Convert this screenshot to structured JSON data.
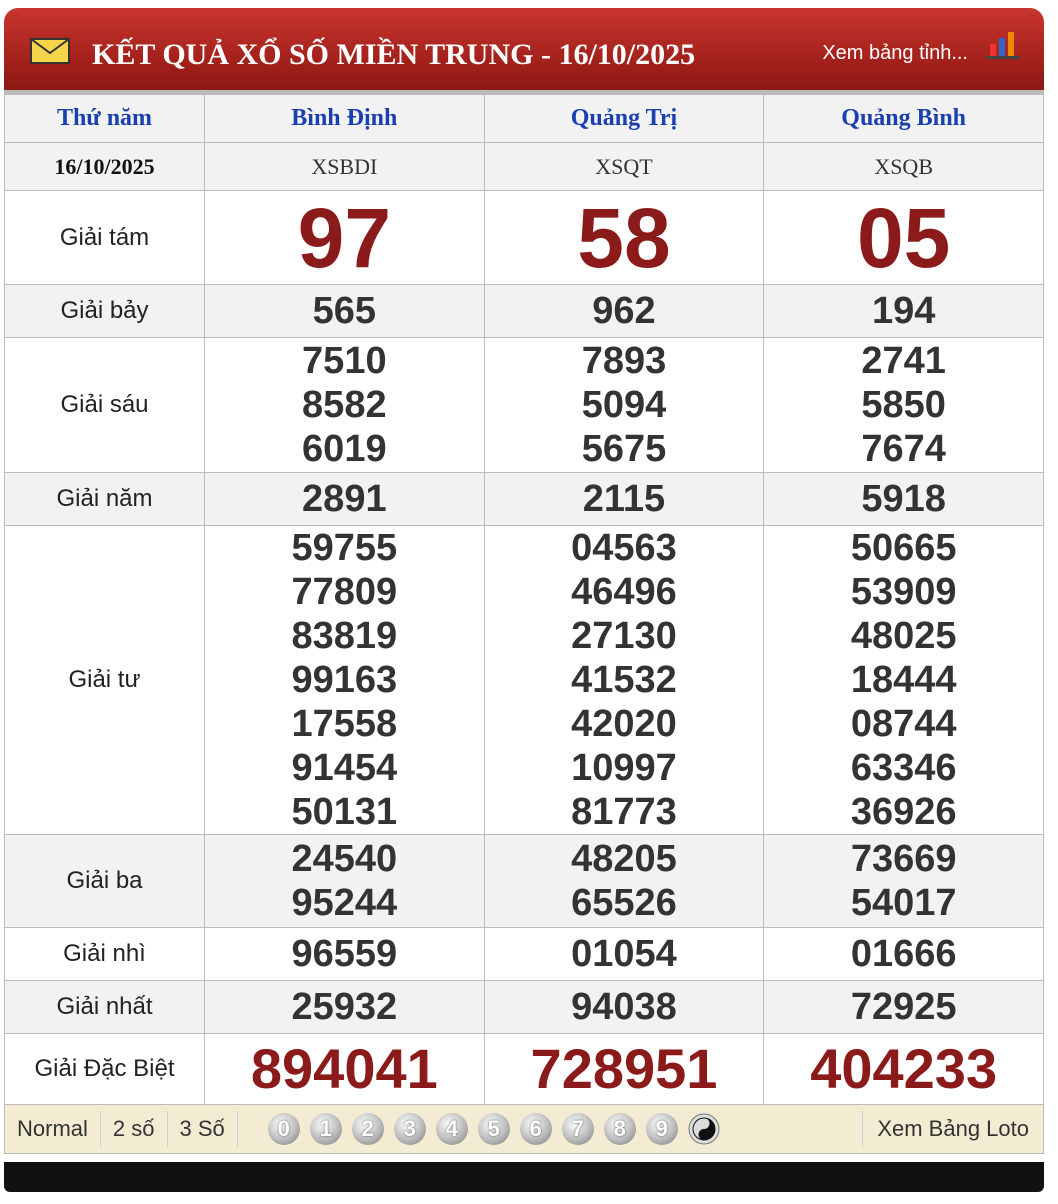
{
  "header": {
    "title": "KẾT QUẢ XỔ SỐ MIỀN TRUNG - 16/10/2025",
    "link": "Xem bảng tỉnh..."
  },
  "table": {
    "day": "Thứ năm",
    "date": "16/10/2025",
    "provinces": [
      {
        "name": "Bình Định",
        "code": "XSBDI"
      },
      {
        "name": "Quảng Trị",
        "code": "XSQT"
      },
      {
        "name": "Quảng Bình",
        "code": "XSQB"
      }
    ],
    "prizes": [
      {
        "label": "Giải tám",
        "results": [
          [
            "97"
          ],
          [
            "58"
          ],
          [
            "05"
          ]
        ]
      },
      {
        "label": "Giải bảy",
        "results": [
          [
            "565"
          ],
          [
            "962"
          ],
          [
            "194"
          ]
        ]
      },
      {
        "label": "Giải sáu",
        "results": [
          [
            "7510",
            "8582",
            "6019"
          ],
          [
            "7893",
            "5094",
            "5675"
          ],
          [
            "2741",
            "5850",
            "7674"
          ]
        ]
      },
      {
        "label": "Giải năm",
        "results": [
          [
            "2891"
          ],
          [
            "2115"
          ],
          [
            "5918"
          ]
        ]
      },
      {
        "label": "Giải tư",
        "results": [
          [
            "59755",
            "77809",
            "83819",
            "99163",
            "17558",
            "91454",
            "50131"
          ],
          [
            "04563",
            "46496",
            "27130",
            "41532",
            "42020",
            "10997",
            "81773"
          ],
          [
            "50665",
            "53909",
            "48025",
            "18444",
            "08744",
            "63346",
            "36926"
          ]
        ]
      },
      {
        "label": "Giải ba",
        "results": [
          [
            "24540",
            "95244"
          ],
          [
            "48205",
            "65526"
          ],
          [
            "73669",
            "54017"
          ]
        ]
      },
      {
        "label": "Giải nhì",
        "results": [
          [
            "96559"
          ],
          [
            "01054"
          ],
          [
            "01666"
          ]
        ]
      },
      {
        "label": "Giải nhất",
        "results": [
          [
            "25932"
          ],
          [
            "94038"
          ],
          [
            "72925"
          ]
        ]
      },
      {
        "label": "Giải Đặc Biệt",
        "results": [
          [
            "894041"
          ],
          [
            "728951"
          ],
          [
            "404233"
          ]
        ]
      }
    ]
  },
  "footer": {
    "modes": [
      "Normal",
      "2 số",
      "3 Số"
    ],
    "digits": [
      "0",
      "1",
      "2",
      "3",
      "4",
      "5",
      "6",
      "7",
      "8",
      "9"
    ],
    "link": "Xem Bảng Loto"
  }
}
